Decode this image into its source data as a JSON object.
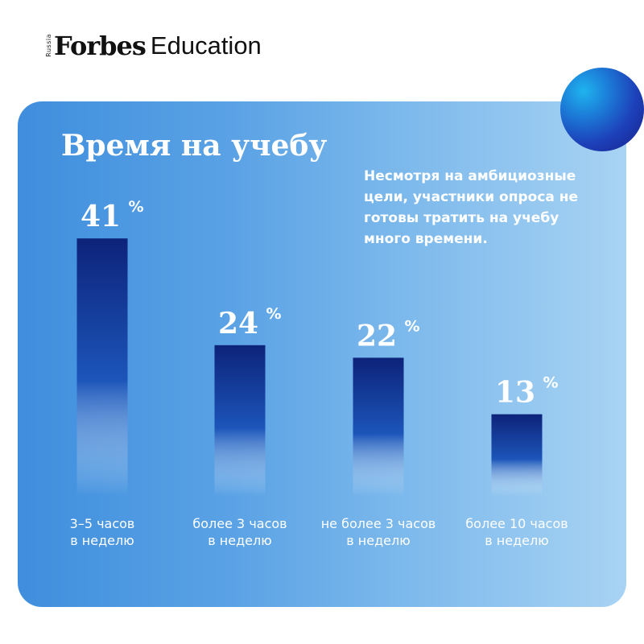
{
  "brand": {
    "region": "Russia",
    "name": "Forbes",
    "section": "Education"
  },
  "colors": {
    "bar_top": "#0d237a",
    "bar_bottom": "#ffffff",
    "orb_core": "#1fb4ee",
    "orb_edge": "#17208a"
  },
  "note": "Несмотря на амбициозные цели, участники опроса не готовы тратить на учебу много времени.",
  "chart_data": {
    "type": "bar",
    "title": "Время на учебу",
    "categories": [
      [
        "3–5 часов",
        "в неделю"
      ],
      [
        "более 3 часов",
        "в неделю"
      ],
      [
        "не более 3 часов",
        "в неделю"
      ],
      [
        "более 10 часов",
        "в неделю"
      ]
    ],
    "values": [
      41,
      24,
      22,
      13
    ],
    "value_labels": [
      "41",
      "24",
      "22",
      "13"
    ],
    "unit": "%",
    "grid": false,
    "legend": "none"
  }
}
